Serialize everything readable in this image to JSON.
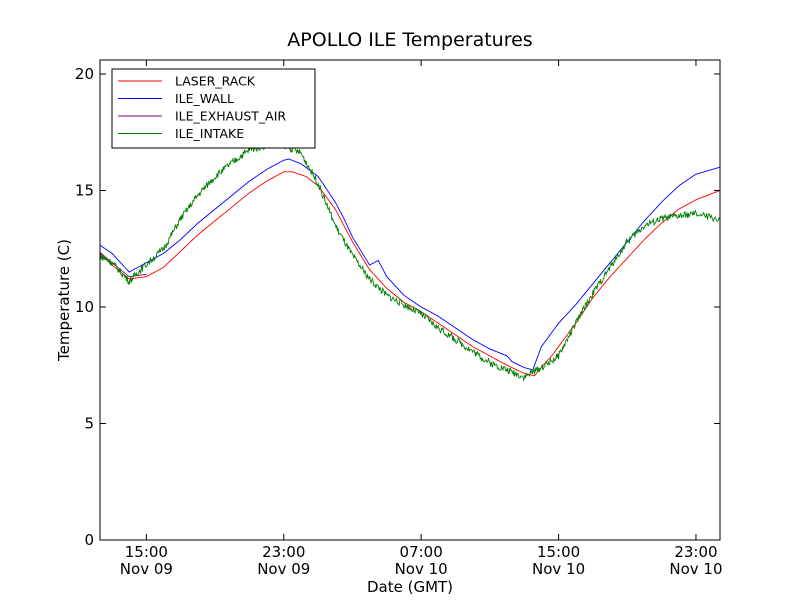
{
  "chart_data": {
    "type": "line",
    "title": "APOLLO ILE Temperatures",
    "xlabel": "Date (GMT)",
    "ylabel": "Temperature (C)",
    "x_unit": "hours since 00:00 Nov 09 (GMT)",
    "xlim": [
      12.3,
      48.4
    ],
    "ylim": [
      0,
      20.6
    ],
    "grid": false,
    "legend_position": "top-left",
    "x_ticks": [
      {
        "value": 15,
        "time": "15:00",
        "date": "Nov 09"
      },
      {
        "value": 23,
        "time": "23:00",
        "date": "Nov 09"
      },
      {
        "value": 31,
        "time": "07:00",
        "date": "Nov 10"
      },
      {
        "value": 39,
        "time": "15:00",
        "date": "Nov 10"
      },
      {
        "value": 47,
        "time": "23:00",
        "date": "Nov 10"
      }
    ],
    "y_ticks": [
      {
        "value": 0,
        "label": "0"
      },
      {
        "value": 5,
        "label": "5"
      },
      {
        "value": 10,
        "label": "10"
      },
      {
        "value": 15,
        "label": "15"
      },
      {
        "value": 20,
        "label": "20"
      }
    ],
    "series": [
      {
        "name": "LASER_RACK",
        "color": "#ff0000",
        "noise": 0,
        "points": [
          [
            12.3,
            12.3
          ],
          [
            13.0,
            11.8
          ],
          [
            14.0,
            11.2
          ],
          [
            15.0,
            11.3
          ],
          [
            16.0,
            11.7
          ],
          [
            17.0,
            12.4
          ],
          [
            18.0,
            13.1
          ],
          [
            19.0,
            13.7
          ],
          [
            20.0,
            14.3
          ],
          [
            21.0,
            14.9
          ],
          [
            22.0,
            15.4
          ],
          [
            23.0,
            15.8
          ],
          [
            23.5,
            15.8
          ],
          [
            24.3,
            15.6
          ],
          [
            25.0,
            15.2
          ],
          [
            26.0,
            14.2
          ],
          [
            26.5,
            13.5
          ],
          [
            27.0,
            12.8
          ],
          [
            28.0,
            11.6
          ],
          [
            29.0,
            10.8
          ],
          [
            30.0,
            10.2
          ],
          [
            31.0,
            9.8
          ],
          [
            32.0,
            9.3
          ],
          [
            33.0,
            8.8
          ],
          [
            34.0,
            8.3
          ],
          [
            35.0,
            7.9
          ],
          [
            36.0,
            7.5
          ],
          [
            37.0,
            7.15
          ],
          [
            37.6,
            7.05
          ],
          [
            38.1,
            7.5
          ],
          [
            38.6,
            7.9
          ],
          [
            39.0,
            8.3
          ],
          [
            40.0,
            9.3
          ],
          [
            41.0,
            10.4
          ],
          [
            42.0,
            11.3
          ],
          [
            43.0,
            12.1
          ],
          [
            44.0,
            12.9
          ],
          [
            45.0,
            13.6
          ],
          [
            46.0,
            14.2
          ],
          [
            47.0,
            14.6
          ],
          [
            48.4,
            15.0
          ]
        ]
      },
      {
        "name": "ILE_WALL",
        "color": "#0000ff",
        "noise": 0,
        "points": [
          [
            12.3,
            12.65
          ],
          [
            13.0,
            12.3
          ],
          [
            14.0,
            11.5
          ],
          [
            15.0,
            11.9
          ],
          [
            16.0,
            12.3
          ],
          [
            17.0,
            12.9
          ],
          [
            18.0,
            13.6
          ],
          [
            19.0,
            14.2
          ],
          [
            20.0,
            14.8
          ],
          [
            21.0,
            15.4
          ],
          [
            22.0,
            15.9
          ],
          [
            23.0,
            16.3
          ],
          [
            23.3,
            16.35
          ],
          [
            24.0,
            16.15
          ],
          [
            25.0,
            15.6
          ],
          [
            26.0,
            14.5
          ],
          [
            26.5,
            13.8
          ],
          [
            27.0,
            13.0
          ],
          [
            28.0,
            11.8
          ],
          [
            28.5,
            12.0
          ],
          [
            29.0,
            11.3
          ],
          [
            30.0,
            10.5
          ],
          [
            31.0,
            10.0
          ],
          [
            32.0,
            9.6
          ],
          [
            33.0,
            9.1
          ],
          [
            34.0,
            8.6
          ],
          [
            35.0,
            8.2
          ],
          [
            36.0,
            7.9
          ],
          [
            36.3,
            7.65
          ],
          [
            37.0,
            7.4
          ],
          [
            37.5,
            7.3
          ],
          [
            38.0,
            8.3
          ],
          [
            39.0,
            9.3
          ],
          [
            40.0,
            10.1
          ],
          [
            41.0,
            11.0
          ],
          [
            42.0,
            11.9
          ],
          [
            43.0,
            12.8
          ],
          [
            44.0,
            13.7
          ],
          [
            45.0,
            14.5
          ],
          [
            46.0,
            15.2
          ],
          [
            47.0,
            15.7
          ],
          [
            48.4,
            16.0
          ]
        ]
      },
      {
        "name": "ILE_EXHAUST_AIR",
        "color": "#800080",
        "noise": 0,
        "points": [
          [
            12.3,
            12.35
          ],
          [
            13.0,
            11.9
          ],
          [
            14.0,
            11.3
          ],
          [
            15.0,
            11.4
          ]
        ]
      },
      {
        "name": "ILE_INTAKE",
        "color": "#008000",
        "noise": 0.15,
        "points": [
          [
            12.3,
            12.2
          ],
          [
            13.0,
            11.9
          ],
          [
            14.0,
            11.1
          ],
          [
            14.8,
            11.7
          ],
          [
            16.0,
            12.5
          ],
          [
            17.0,
            13.8
          ],
          [
            18.0,
            14.8
          ],
          [
            19.0,
            15.6
          ],
          [
            20.0,
            16.2
          ],
          [
            21.0,
            16.75
          ],
          [
            22.0,
            16.95
          ],
          [
            23.0,
            16.95
          ],
          [
            24.0,
            16.6
          ],
          [
            25.0,
            15.3
          ],
          [
            26.0,
            13.5
          ],
          [
            27.0,
            12.2
          ],
          [
            28.0,
            11.2
          ],
          [
            29.0,
            10.5
          ],
          [
            30.0,
            10.1
          ],
          [
            31.0,
            9.7
          ],
          [
            32.0,
            9.1
          ],
          [
            33.0,
            8.6
          ],
          [
            34.0,
            8.1
          ],
          [
            35.0,
            7.6
          ],
          [
            36.0,
            7.3
          ],
          [
            37.0,
            7.0
          ],
          [
            38.0,
            7.4
          ],
          [
            39.0,
            7.9
          ],
          [
            40.0,
            9.3
          ],
          [
            41.0,
            10.6
          ],
          [
            42.0,
            11.7
          ],
          [
            43.0,
            12.8
          ],
          [
            44.0,
            13.5
          ],
          [
            45.0,
            13.8
          ],
          [
            46.0,
            13.9
          ],
          [
            47.0,
            14.0
          ],
          [
            48.4,
            13.75
          ]
        ]
      }
    ]
  }
}
